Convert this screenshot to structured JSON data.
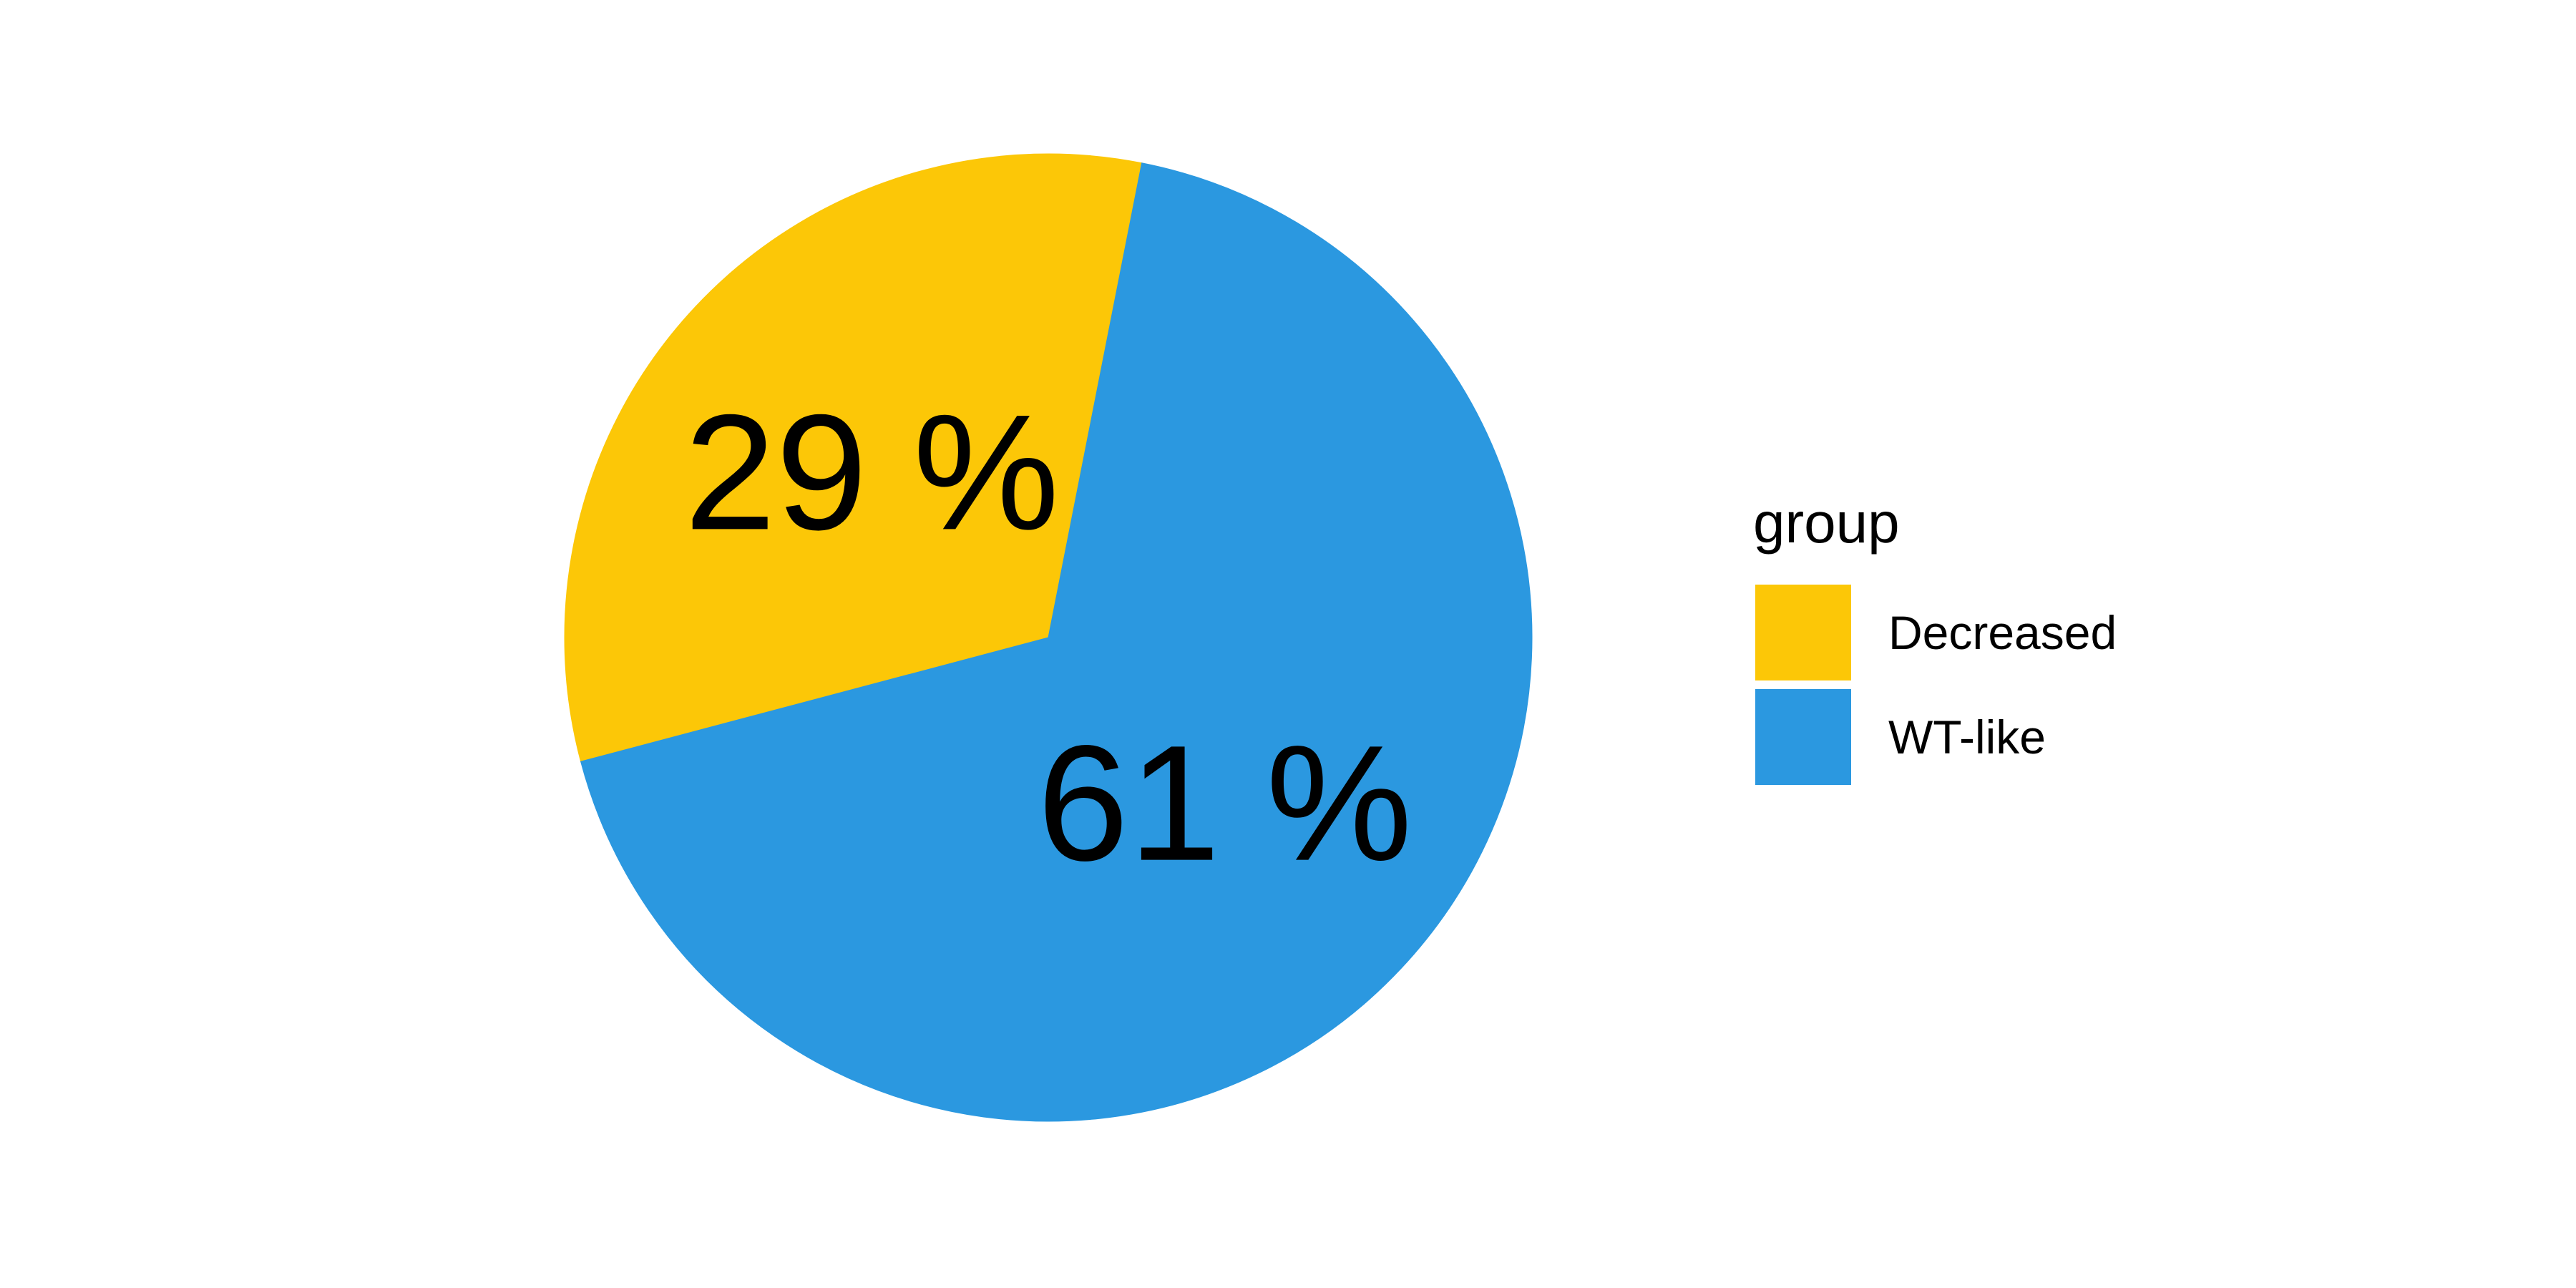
{
  "chart_data": {
    "type": "pie",
    "categories": [
      "Decreased",
      "WT-like"
    ],
    "values": [
      29,
      61
    ],
    "labels": [
      "29 %",
      "61 %"
    ],
    "colors": [
      "#FCC707",
      "#2B98E0"
    ],
    "legend": {
      "title": "group",
      "placement": "right",
      "entries": [
        "Decreased",
        "WT-like"
      ]
    },
    "title": "",
    "xlabel": "",
    "ylabel": ""
  }
}
